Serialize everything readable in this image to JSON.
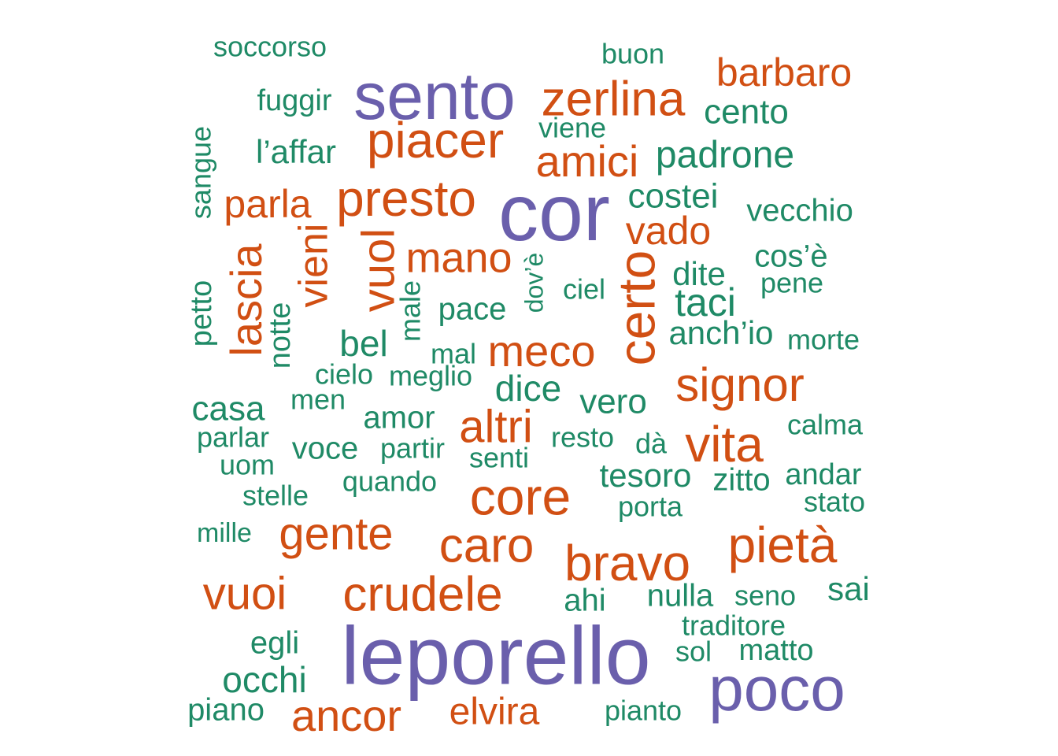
{
  "colors": {
    "large": "#6a5fac",
    "medium": "#d14f13",
    "small": "#1f8a66"
  },
  "words": [
    {
      "text": "soccorso",
      "group": "small"
    },
    {
      "text": "buon",
      "group": "small"
    },
    {
      "text": "sento",
      "group": "large"
    },
    {
      "text": "barbaro",
      "group": "medium"
    },
    {
      "text": "zerlina",
      "group": "medium"
    },
    {
      "text": "fuggir",
      "group": "small"
    },
    {
      "text": "cento",
      "group": "small"
    },
    {
      "text": "piacer",
      "group": "medium"
    },
    {
      "text": "viene",
      "group": "small"
    },
    {
      "text": "l’affar",
      "group": "small"
    },
    {
      "text": "amici",
      "group": "medium"
    },
    {
      "text": "padrone",
      "group": "small"
    },
    {
      "text": "sangue",
      "group": "small"
    },
    {
      "text": "cor",
      "group": "large"
    },
    {
      "text": "presto",
      "group": "medium"
    },
    {
      "text": "parla",
      "group": "medium"
    },
    {
      "text": "costei",
      "group": "small"
    },
    {
      "text": "vecchio",
      "group": "small"
    },
    {
      "text": "vado",
      "group": "medium"
    },
    {
      "text": "vieni",
      "group": "medium"
    },
    {
      "text": "vuol",
      "group": "medium"
    },
    {
      "text": "mano",
      "group": "medium"
    },
    {
      "text": "cos’è",
      "group": "small"
    },
    {
      "text": "lascia",
      "group": "medium"
    },
    {
      "text": "certo",
      "group": "medium"
    },
    {
      "text": "dite",
      "group": "small"
    },
    {
      "text": "pene",
      "group": "small"
    },
    {
      "text": "dov’è",
      "group": "small"
    },
    {
      "text": "ciel",
      "group": "small"
    },
    {
      "text": "petto",
      "group": "small"
    },
    {
      "text": "male",
      "group": "small"
    },
    {
      "text": "pace",
      "group": "small"
    },
    {
      "text": "taci",
      "group": "small"
    },
    {
      "text": "notte",
      "group": "small"
    },
    {
      "text": "anch’io",
      "group": "small"
    },
    {
      "text": "bel",
      "group": "small"
    },
    {
      "text": "morte",
      "group": "small"
    },
    {
      "text": "mal",
      "group": "small"
    },
    {
      "text": "meco",
      "group": "medium"
    },
    {
      "text": "cielo",
      "group": "small"
    },
    {
      "text": "meglio",
      "group": "small"
    },
    {
      "text": "signor",
      "group": "medium"
    },
    {
      "text": "dice",
      "group": "small"
    },
    {
      "text": "casa",
      "group": "small"
    },
    {
      "text": "men",
      "group": "small"
    },
    {
      "text": "vero",
      "group": "small"
    },
    {
      "text": "amor",
      "group": "small"
    },
    {
      "text": "altri",
      "group": "medium"
    },
    {
      "text": "calma",
      "group": "small"
    },
    {
      "text": "vita",
      "group": "medium"
    },
    {
      "text": "parlar",
      "group": "small"
    },
    {
      "text": "resto",
      "group": "small"
    },
    {
      "text": "voce",
      "group": "small"
    },
    {
      "text": "partir",
      "group": "small"
    },
    {
      "text": "dà",
      "group": "small"
    },
    {
      "text": "senti",
      "group": "small"
    },
    {
      "text": "uom",
      "group": "small"
    },
    {
      "text": "tesoro",
      "group": "small"
    },
    {
      "text": "andar",
      "group": "small"
    },
    {
      "text": "quando",
      "group": "small"
    },
    {
      "text": "zitto",
      "group": "small"
    },
    {
      "text": "core",
      "group": "medium"
    },
    {
      "text": "stelle",
      "group": "small"
    },
    {
      "text": "stato",
      "group": "small"
    },
    {
      "text": "porta",
      "group": "small"
    },
    {
      "text": "mille",
      "group": "small"
    },
    {
      "text": "gente",
      "group": "medium"
    },
    {
      "text": "pietà",
      "group": "medium"
    },
    {
      "text": "caro",
      "group": "medium"
    },
    {
      "text": "bravo",
      "group": "medium"
    },
    {
      "text": "vuoi",
      "group": "medium"
    },
    {
      "text": "crudele",
      "group": "medium"
    },
    {
      "text": "sai",
      "group": "small"
    },
    {
      "text": "nulla",
      "group": "small"
    },
    {
      "text": "seno",
      "group": "small"
    },
    {
      "text": "ahi",
      "group": "small"
    },
    {
      "text": "traditore",
      "group": "small"
    },
    {
      "text": "egli",
      "group": "small"
    },
    {
      "text": "leporello",
      "group": "large"
    },
    {
      "text": "sol",
      "group": "small"
    },
    {
      "text": "matto",
      "group": "small"
    },
    {
      "text": "occhi",
      "group": "small"
    },
    {
      "text": "poco",
      "group": "large"
    },
    {
      "text": "piano",
      "group": "small"
    },
    {
      "text": "ancor",
      "group": "medium"
    },
    {
      "text": "elvira",
      "group": "medium"
    },
    {
      "text": "pianto",
      "group": "small"
    }
  ]
}
